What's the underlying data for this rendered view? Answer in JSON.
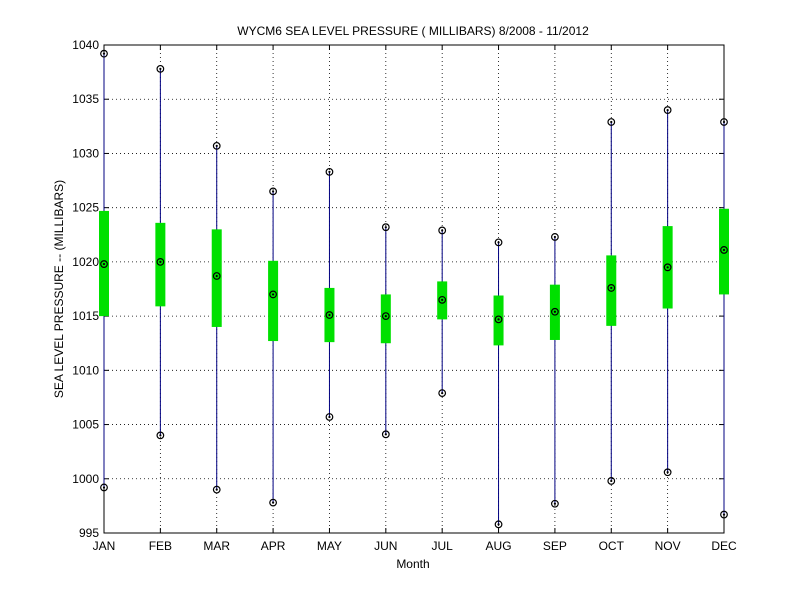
{
  "chart_data": {
    "type": "box",
    "title": "WYCM6  SEA LEVEL PRESSURE ( MILLIBARS) 8/2008 - 11/2012",
    "xlabel": "Month",
    "ylabel": "SEA LEVEL PRESSURE -- (MILLIBARS)",
    "ylim": [
      995,
      1040
    ],
    "yticks": [
      995,
      1000,
      1005,
      1010,
      1015,
      1020,
      1025,
      1030,
      1035,
      1040
    ],
    "grid": true,
    "categories": [
      "JAN",
      "FEB",
      "MAR",
      "APR",
      "MAY",
      "JUN",
      "JUL",
      "AUG",
      "SEP",
      "OCT",
      "NOV",
      "DEC"
    ],
    "series": [
      {
        "min": [
          999.2,
          1004.0,
          999.0,
          997.8,
          1005.7,
          1004.1,
          1007.9,
          995.8,
          997.7,
          999.8,
          1000.6,
          996.7
        ],
        "q1": [
          1015.0,
          1015.9,
          1014.0,
          1012.7,
          1012.6,
          1012.5,
          1014.7,
          1012.3,
          1012.8,
          1014.1,
          1015.7,
          1017.0
        ],
        "median": [
          1019.8,
          1020.0,
          1018.7,
          1017.0,
          1015.1,
          1015.0,
          1016.5,
          1014.7,
          1015.4,
          1017.6,
          1019.5,
          1021.1
        ],
        "q3": [
          1024.7,
          1023.6,
          1023.0,
          1020.1,
          1017.6,
          1017.0,
          1018.2,
          1016.9,
          1017.9,
          1020.6,
          1023.3,
          1024.9
        ],
        "max": [
          1039.2,
          1037.8,
          1030.7,
          1026.5,
          1028.3,
          1023.2,
          1022.9,
          1021.8,
          1022.3,
          1032.9,
          1034.0,
          1032.9
        ]
      }
    ],
    "colors": {
      "box": "#00e000",
      "whisker": "#000080",
      "marker": "#000000",
      "grid": "#000000",
      "axis": "#000000"
    }
  }
}
